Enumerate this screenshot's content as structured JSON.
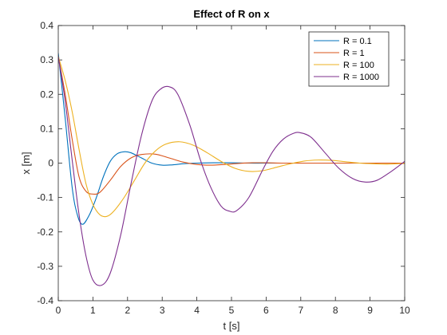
{
  "chart_data": {
    "type": "line",
    "title": "Effect of R on x",
    "xlabel": "t [s]",
    "ylabel": "x [m]",
    "xlim": [
      0,
      10
    ],
    "ylim": [
      -0.4,
      0.4
    ],
    "xticks": [
      0,
      1,
      2,
      3,
      4,
      5,
      6,
      7,
      8,
      9,
      10
    ],
    "yticks": [
      -0.4,
      -0.3,
      -0.2,
      -0.1,
      0,
      0.1,
      0.2,
      0.3,
      0.4
    ],
    "grid": false,
    "legend_position": "top-right",
    "series": [
      {
        "name": "R = 0.1",
        "color": "#0072BD",
        "points": [
          [
            0,
            0.32
          ],
          [
            0.2,
            0.13
          ],
          [
            0.4,
            -0.07
          ],
          [
            0.55,
            -0.15
          ],
          [
            0.7,
            -0.178
          ],
          [
            0.9,
            -0.15
          ],
          [
            1.1,
            -0.1
          ],
          [
            1.3,
            -0.04
          ],
          [
            1.5,
            0.005
          ],
          [
            1.7,
            0.027
          ],
          [
            1.9,
            0.033
          ],
          [
            2.1,
            0.03
          ],
          [
            2.4,
            0.015
          ],
          [
            2.7,
            0.0
          ],
          [
            3.0,
            -0.006
          ],
          [
            3.3,
            -0.005
          ],
          [
            3.6,
            -0.002
          ],
          [
            4.0,
            0.0
          ],
          [
            4.5,
            0.001
          ],
          [
            5.0,
            0.001
          ],
          [
            5.5,
            0.0
          ],
          [
            6.0,
            0.0
          ],
          [
            7.0,
            0.0
          ],
          [
            8.0,
            0.0
          ],
          [
            9.0,
            0.0
          ],
          [
            10.0,
            0.0
          ]
        ]
      },
      {
        "name": "R = 1",
        "color": "#D95319",
        "points": [
          [
            0,
            0.31
          ],
          [
            0.2,
            0.2
          ],
          [
            0.4,
            0.07
          ],
          [
            0.6,
            -0.04
          ],
          [
            0.8,
            -0.082
          ],
          [
            1.0,
            -0.09
          ],
          [
            1.2,
            -0.085
          ],
          [
            1.5,
            -0.05
          ],
          [
            1.8,
            -0.01
          ],
          [
            2.1,
            0.015
          ],
          [
            2.4,
            0.025
          ],
          [
            2.8,
            0.026
          ],
          [
            3.2,
            0.015
          ],
          [
            3.6,
            0.003
          ],
          [
            4.0,
            -0.004
          ],
          [
            4.4,
            -0.006
          ],
          [
            4.8,
            -0.004
          ],
          [
            5.2,
            -0.001
          ],
          [
            5.6,
            0.001
          ],
          [
            6.0,
            0.001
          ],
          [
            6.5,
            0.0
          ],
          [
            7.0,
            0.0
          ],
          [
            8.0,
            0.0
          ],
          [
            9.0,
            0.0
          ],
          [
            10.0,
            0.0
          ]
        ]
      },
      {
        "name": "R = 100",
        "color": "#EDB120",
        "points": [
          [
            0,
            0.31
          ],
          [
            0.2,
            0.24
          ],
          [
            0.4,
            0.15
          ],
          [
            0.6,
            0.04
          ],
          [
            0.8,
            -0.06
          ],
          [
            1.0,
            -0.12
          ],
          [
            1.2,
            -0.15
          ],
          [
            1.4,
            -0.155
          ],
          [
            1.6,
            -0.14
          ],
          [
            1.9,
            -0.1
          ],
          [
            2.2,
            -0.05
          ],
          [
            2.5,
            0.0
          ],
          [
            2.8,
            0.035
          ],
          [
            3.1,
            0.055
          ],
          [
            3.5,
            0.062
          ],
          [
            3.9,
            0.052
          ],
          [
            4.3,
            0.03
          ],
          [
            4.7,
            0.005
          ],
          [
            5.1,
            -0.015
          ],
          [
            5.5,
            -0.024
          ],
          [
            5.9,
            -0.022
          ],
          [
            6.3,
            -0.012
          ],
          [
            6.7,
            -0.002
          ],
          [
            7.1,
            0.006
          ],
          [
            7.5,
            0.009
          ],
          [
            7.9,
            0.008
          ],
          [
            8.3,
            0.004
          ],
          [
            8.7,
            0.0
          ],
          [
            9.1,
            -0.002
          ],
          [
            9.5,
            -0.003
          ],
          [
            10.0,
            -0.001
          ]
        ]
      },
      {
        "name": "R = 1000",
        "color": "#7E2F8E",
        "points": [
          [
            0,
            0.31
          ],
          [
            0.2,
            0.18
          ],
          [
            0.4,
            0.01
          ],
          [
            0.6,
            -0.15
          ],
          [
            0.8,
            -0.27
          ],
          [
            1.0,
            -0.34
          ],
          [
            1.25,
            -0.355
          ],
          [
            1.5,
            -0.32
          ],
          [
            1.8,
            -0.21
          ],
          [
            2.1,
            -0.06
          ],
          [
            2.4,
            0.08
          ],
          [
            2.7,
            0.18
          ],
          [
            2.95,
            0.215
          ],
          [
            3.2,
            0.222
          ],
          [
            3.45,
            0.2
          ],
          [
            3.8,
            0.11
          ],
          [
            4.1,
            0.01
          ],
          [
            4.4,
            -0.07
          ],
          [
            4.7,
            -0.125
          ],
          [
            4.95,
            -0.14
          ],
          [
            5.15,
            -0.138
          ],
          [
            5.5,
            -0.1
          ],
          [
            5.9,
            -0.02
          ],
          [
            6.2,
            0.035
          ],
          [
            6.5,
            0.07
          ],
          [
            6.8,
            0.087
          ],
          [
            7.0,
            0.088
          ],
          [
            7.3,
            0.075
          ],
          [
            7.7,
            0.03
          ],
          [
            8.1,
            -0.015
          ],
          [
            8.5,
            -0.045
          ],
          [
            8.85,
            -0.055
          ],
          [
            9.2,
            -0.05
          ],
          [
            9.6,
            -0.025
          ],
          [
            10.0,
            0.005
          ]
        ]
      }
    ]
  }
}
